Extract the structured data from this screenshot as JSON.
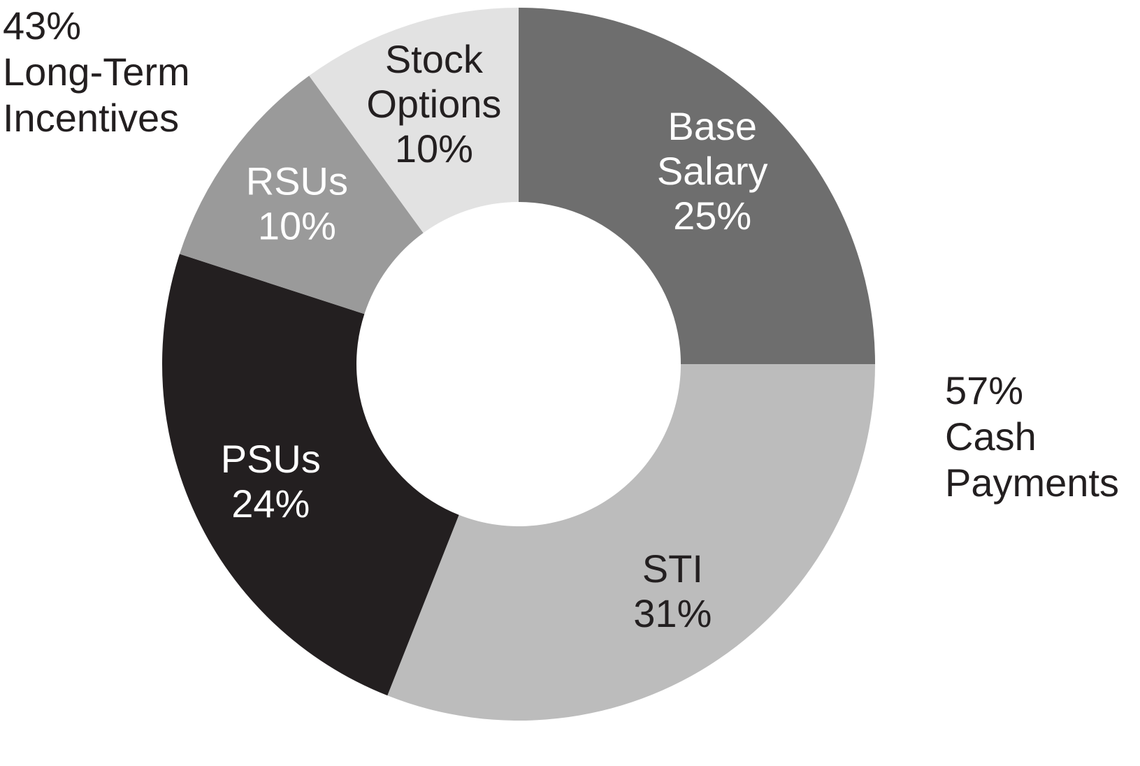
{
  "chart_data": {
    "type": "pie",
    "variant": "donut",
    "start": "12 o'clock",
    "direction": "clockwise",
    "slices": [
      {
        "label": "Base Salary",
        "label_lines": [
          "Base",
          "Salary"
        ],
        "value": 25,
        "value_label": "25%",
        "color": "#6e6e6e",
        "text_color": "#ffffff"
      },
      {
        "label": "STI",
        "label_lines": [
          "STI"
        ],
        "value": 31,
        "value_label": "31%",
        "color": "#bcbcbc",
        "text_color": "#231f20"
      },
      {
        "label": "PSUs",
        "label_lines": [
          "PSUs"
        ],
        "value": 24,
        "value_label": "24%",
        "color": "#231f20",
        "text_color": "#ffffff"
      },
      {
        "label": "RSUs",
        "label_lines": [
          "RSUs"
        ],
        "value": 10,
        "value_label": "10%",
        "color": "#9a9a9a",
        "text_color": "#ffffff"
      },
      {
        "label": "Stock Options",
        "label_lines": [
          "Stock",
          "Options"
        ],
        "value": 10,
        "value_label": "10%",
        "color": "#e2e2e2",
        "text_color": "#231f20"
      }
    ],
    "groups": [
      {
        "name": "Long-Term Incentives",
        "percent_label": "43%",
        "line1": "Long-Term",
        "line2": "Incentives",
        "placement": "top-left"
      },
      {
        "name": "Cash Payments",
        "percent_label": "57%",
        "line1": "Cash",
        "line2": "Payments",
        "placement": "right"
      }
    ]
  }
}
